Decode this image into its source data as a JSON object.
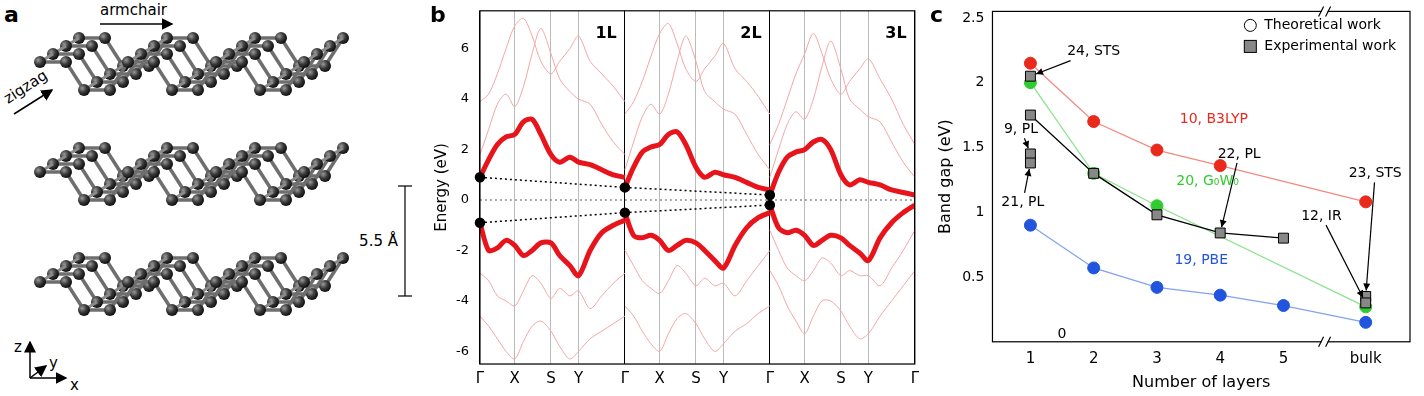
{
  "panel_labels": {
    "a": "a",
    "b": "b",
    "c": "c"
  },
  "structure": {
    "armchair": "armchair",
    "zigzag": "zigzag",
    "spacing": "5.5 Å",
    "axes": {
      "x": "x",
      "y": "y",
      "z": "z"
    }
  },
  "chart_data": [
    {
      "type": "line",
      "y_label": "Energy (eV)",
      "xlim": [
        0,
        3
      ],
      "xticks": [
        {
          "value": 0,
          "label": "Γ"
        },
        {
          "value": 0.24,
          "label": "X"
        },
        {
          "value": 0.49,
          "label": "S"
        },
        {
          "value": 0.68,
          "label": "Y"
        },
        {
          "value": 1,
          "label": "Γ"
        },
        {
          "value": 1.24,
          "label": "X"
        },
        {
          "value": 1.49,
          "label": "S"
        },
        {
          "value": 1.68,
          "label": "Y"
        },
        {
          "value": 2,
          "label": "Γ"
        },
        {
          "value": 2.24,
          "label": "X"
        },
        {
          "value": 2.49,
          "label": "S"
        },
        {
          "value": 2.68,
          "label": "Y"
        },
        {
          "value": 3,
          "label": "Γ"
        }
      ],
      "ylim": [
        -6.5,
        7.5
      ],
      "yticks": [
        -6,
        -4,
        -2,
        0,
        2,
        4,
        6
      ],
      "grid": true,
      "annotations": [
        {
          "text": "1L",
          "x": 0.87,
          "y": 6.6
        },
        {
          "text": "2L",
          "x": 1.87,
          "y": 6.6
        },
        {
          "text": "3L",
          "x": 2.87,
          "y": 6.6
        }
      ],
      "series": [
        {
          "x": [
            0,
            0.06,
            0.12,
            0.18,
            0.24,
            0.3,
            0.36,
            0.42,
            0.49,
            0.55,
            0.62,
            0.68,
            0.76,
            0.84,
            0.92,
            1
          ],
          "values": [
            1.8,
            2.8,
            3.8,
            4.2,
            3.7,
            4.5,
            5.8,
            6.8,
            5.8,
            4.8,
            4.3,
            4.0,
            3.8,
            3.0,
            2.3,
            1.8
          ],
          "color": "#f3a6a6",
          "line_style": "solid"
        },
        {
          "x": [
            0,
            0.06,
            0.12,
            0.18,
            0.24,
            0.3,
            0.36,
            0.42,
            0.49,
            0.55,
            0.62,
            0.68,
            0.76,
            0.84,
            0.92,
            1
          ],
          "values": [
            3.9,
            4.2,
            5.0,
            6.0,
            6.9,
            7.2,
            6.5,
            5.5,
            5.0,
            5.5,
            6.0,
            6.5,
            5.5,
            5.0,
            4.5,
            3.9
          ],
          "color": "#f3a6a6",
          "line_style": "solid"
        },
        {
          "x": [
            0,
            0.06,
            0.12,
            0.18,
            0.24,
            0.3,
            0.36,
            0.42,
            0.49,
            0.55,
            0.62,
            0.68,
            0.76,
            0.84,
            0.92,
            1
          ],
          "values": [
            -2.9,
            -3.2,
            -3.8,
            -4.0,
            -4.2,
            -3.6,
            -3.0,
            -3.3,
            -3.9,
            -3.5,
            -3.8,
            -3.6,
            -4.3,
            -3.8,
            -3.3,
            -2.9
          ],
          "color": "#f3a6a6",
          "line_style": "solid"
        },
        {
          "x": [
            0,
            0.06,
            0.12,
            0.18,
            0.24,
            0.3,
            0.36,
            0.42,
            0.49,
            0.55,
            0.62,
            0.68,
            0.76,
            0.84,
            0.92,
            1
          ],
          "values": [
            -4.6,
            -5.0,
            -5.5,
            -6.0,
            -6.3,
            -5.6,
            -5.0,
            -4.8,
            -5.2,
            -5.8,
            -6.3,
            -6.0,
            -5.5,
            -5.2,
            -4.9,
            -4.6
          ],
          "color": "#f3a6a6",
          "line_style": "solid"
        },
        {
          "x": [
            0,
            0.06,
            0.12,
            0.18,
            0.24,
            0.3,
            0.36,
            0.42,
            0.49,
            0.55,
            0.62,
            0.68,
            0.76,
            0.84,
            0.92,
            1
          ],
          "values": [
            0.9,
            1.6,
            2.2,
            2.5,
            2.6,
            3.1,
            3.2,
            2.6,
            1.8,
            1.5,
            1.7,
            1.5,
            1.4,
            1.2,
            1.0,
            0.9
          ],
          "color": "#e8141c",
          "line_style": "solid"
        },
        {
          "x": [
            0,
            0.06,
            0.12,
            0.18,
            0.24,
            0.3,
            0.36,
            0.42,
            0.49,
            0.55,
            0.62,
            0.68,
            0.76,
            0.84,
            0.92,
            1
          ],
          "values": [
            -0.9,
            -2.0,
            -1.9,
            -1.6,
            -1.8,
            -2.2,
            -2.0,
            -1.7,
            -1.7,
            -2.2,
            -2.6,
            -3.0,
            -2.0,
            -1.3,
            -1.0,
            -0.8
          ],
          "color": "#e8141c",
          "line_style": "solid"
        },
        {
          "x": [
            1,
            1.06,
            1.12,
            1.18,
            1.24,
            1.3,
            1.36,
            1.42,
            1.49,
            1.55,
            1.62,
            1.68,
            1.76,
            1.84,
            1.92,
            2
          ],
          "values": [
            1.2,
            2.3,
            3.3,
            3.8,
            3.4,
            4.2,
            5.5,
            6.5,
            5.5,
            4.3,
            3.9,
            3.6,
            3.4,
            2.6,
            1.8,
            1.2
          ],
          "color": "#f3a6a6",
          "line_style": "solid"
        },
        {
          "x": [
            1,
            1.06,
            1.12,
            1.18,
            1.24,
            1.3,
            1.36,
            1.42,
            1.49,
            1.55,
            1.62,
            1.68,
            1.76,
            1.84,
            1.92,
            2
          ],
          "values": [
            3.4,
            3.9,
            4.7,
            5.7,
            6.6,
            7.0,
            6.2,
            5.2,
            4.7,
            5.2,
            5.7,
            6.2,
            5.2,
            4.7,
            4.1,
            3.4
          ],
          "color": "#f3a6a6",
          "line_style": "solid"
        },
        {
          "x": [
            1,
            1.06,
            1.12,
            1.18,
            1.24,
            1.3,
            1.36,
            1.42,
            1.49,
            1.55,
            1.62,
            1.68,
            1.76,
            1.84,
            1.92,
            2
          ],
          "values": [
            -2.0,
            -2.6,
            -3.2,
            -3.5,
            -3.7,
            -3.2,
            -2.6,
            -2.9,
            -3.4,
            -3.1,
            -3.4,
            -3.3,
            -3.8,
            -3.2,
            -2.6,
            -2.0
          ],
          "color": "#f3a6a6",
          "line_style": "solid"
        },
        {
          "x": [
            1,
            1.06,
            1.12,
            1.18,
            1.24,
            1.3,
            1.36,
            1.42,
            1.49,
            1.55,
            1.62,
            1.68,
            1.76,
            1.84,
            1.92,
            2
          ],
          "values": [
            -4.2,
            -4.6,
            -5.2,
            -5.7,
            -6.0,
            -5.3,
            -4.7,
            -4.5,
            -4.9,
            -5.5,
            -6.0,
            -5.7,
            -5.2,
            -4.9,
            -4.5,
            -4.2
          ],
          "color": "#f3a6a6",
          "line_style": "solid"
        },
        {
          "x": [
            1,
            1.06,
            1.12,
            1.18,
            1.24,
            1.3,
            1.36,
            1.42,
            1.49,
            1.55,
            1.62,
            1.68,
            1.76,
            1.84,
            1.92,
            2
          ],
          "values": [
            0.5,
            1.3,
            1.9,
            2.1,
            2.2,
            2.6,
            2.7,
            2.2,
            1.3,
            0.9,
            1.1,
            1.0,
            0.9,
            0.7,
            0.5,
            0.4
          ],
          "color": "#e8141c",
          "line_style": "solid"
        },
        {
          "x": [
            1,
            1.06,
            1.12,
            1.18,
            1.24,
            1.3,
            1.36,
            1.42,
            1.49,
            1.55,
            1.62,
            1.68,
            1.76,
            1.84,
            1.92,
            2
          ],
          "values": [
            -0.5,
            -1.4,
            -1.5,
            -1.4,
            -1.6,
            -2.0,
            -1.8,
            -1.6,
            -1.7,
            -2.0,
            -2.4,
            -2.7,
            -1.8,
            -1.1,
            -0.7,
            -0.5
          ],
          "color": "#e8141c",
          "line_style": "solid"
        },
        {
          "x": [
            2,
            2.06,
            2.12,
            2.18,
            2.24,
            2.3,
            2.36,
            2.42,
            2.49,
            2.55,
            2.62,
            2.68,
            2.76,
            2.84,
            2.92,
            3
          ],
          "values": [
            0.9,
            2.0,
            3.0,
            3.5,
            3.2,
            4.0,
            5.3,
            6.3,
            5.2,
            4.0,
            3.6,
            3.3,
            3.1,
            2.3,
            1.5,
            0.9
          ],
          "color": "#f3a6a6",
          "line_style": "solid"
        },
        {
          "x": [
            2,
            2.06,
            2.12,
            2.18,
            2.24,
            2.3,
            2.36,
            2.42,
            2.49,
            2.55,
            2.62,
            2.68,
            2.76,
            2.84,
            2.92,
            3
          ],
          "values": [
            2.2,
            3.0,
            4.0,
            5.0,
            5.8,
            6.6,
            5.8,
            4.8,
            4.2,
            4.7,
            5.2,
            5.6,
            4.8,
            4.0,
            3.0,
            2.2
          ],
          "color": "#f3a6a6",
          "line_style": "solid"
        },
        {
          "x": [
            2,
            2.06,
            2.12,
            2.18,
            2.24,
            2.3,
            2.36,
            2.42,
            2.49,
            2.55,
            2.62,
            2.68,
            2.76,
            2.84,
            2.92,
            3
          ],
          "values": [
            -1.2,
            -2.0,
            -2.7,
            -3.0,
            -3.2,
            -2.8,
            -2.3,
            -2.5,
            -3.0,
            -2.8,
            -3.0,
            -3.0,
            -3.4,
            -2.7,
            -2.0,
            -1.2
          ],
          "color": "#f3a6a6",
          "line_style": "solid"
        },
        {
          "x": [
            2,
            2.06,
            2.12,
            2.18,
            2.24,
            2.3,
            2.36,
            2.42,
            2.49,
            2.55,
            2.62,
            2.68,
            2.76,
            2.84,
            2.92,
            3
          ],
          "values": [
            -2.8,
            -3.4,
            -4.2,
            -4.8,
            -5.3,
            -4.6,
            -4.0,
            -4.0,
            -4.4,
            -5.0,
            -5.5,
            -5.3,
            -4.6,
            -4.0,
            -3.4,
            -2.8
          ],
          "color": "#f3a6a6",
          "line_style": "solid"
        },
        {
          "x": [
            2,
            2.06,
            2.12,
            2.18,
            2.24,
            2.3,
            2.36,
            2.42,
            2.49,
            2.55,
            2.62,
            2.68,
            2.76,
            2.84,
            2.92,
            3
          ],
          "values": [
            0.2,
            1.1,
            1.7,
            1.9,
            2.0,
            2.3,
            2.4,
            2.0,
            1.0,
            0.6,
            0.8,
            0.7,
            0.6,
            0.4,
            0.3,
            0.2
          ],
          "color": "#e8141c",
          "line_style": "solid"
        },
        {
          "x": [
            2,
            2.06,
            2.12,
            2.18,
            2.24,
            2.3,
            2.36,
            2.42,
            2.49,
            2.55,
            2.62,
            2.68,
            2.76,
            2.84,
            2.92,
            3
          ],
          "values": [
            -0.2,
            -1.1,
            -1.3,
            -1.2,
            -1.4,
            -1.8,
            -1.6,
            -1.4,
            -1.5,
            -1.8,
            -2.1,
            -2.4,
            -1.5,
            -0.9,
            -0.5,
            -0.2
          ],
          "color": "#e8141c",
          "line_style": "solid"
        },
        {
          "x": [
            0,
            1,
            2
          ],
          "values": [
            0.9,
            0.5,
            0.2
          ],
          "color": "#000000",
          "marker": "circle",
          "line_style": "dotted"
        },
        {
          "x": [
            0,
            1,
            2
          ],
          "values": [
            -0.9,
            -0.5,
            -0.2
          ],
          "color": "#000000",
          "marker": "circle",
          "line_style": "dotted"
        }
      ]
    },
    {
      "type": "line",
      "x_label": "Number of layers",
      "y_label": "Band gap (eV)",
      "xlim": [
        0.4,
        7.0
      ],
      "xticks": [
        1,
        2,
        3,
        4,
        5,
        {
          "value": 6.3,
          "label": "bulk"
        }
      ],
      "ylim": [
        0,
        2.55
      ],
      "yticks": [
        0.5,
        1,
        1.5,
        2,
        2.5
      ],
      "legend": "top right",
      "legend_items": [
        {
          "name": "Theoretical work",
          "marker": "circle",
          "color": "#ffffff"
        },
        {
          "name": "Experimental work",
          "marker": "square",
          "color": "#888888"
        }
      ],
      "series": [
        {
          "x": [
            1,
            2,
            3,
            4,
            6.3
          ],
          "values": [
            2.15,
            1.7,
            1.48,
            1.36,
            1.08
          ],
          "color": "#e8291c",
          "marker": "circle",
          "line_style": "solid"
        },
        {
          "x": [
            1,
            2,
            3,
            6.3
          ],
          "values": [
            2.0,
            1.3,
            1.05,
            0.27
          ],
          "color": "#2fcc2f",
          "marker": "circle",
          "line_style": "solid"
        },
        {
          "x": [
            1,
            2,
            3,
            4,
            5,
            6.3
          ],
          "values": [
            0.9,
            0.57,
            0.42,
            0.36,
            0.28,
            0.15
          ],
          "color": "#2255dd",
          "marker": "circle",
          "line_style": "solid"
        },
        {
          "x": [
            1,
            2,
            3,
            4,
            5
          ],
          "values": [
            1.75,
            1.3,
            0.98,
            0.84,
            0.8
          ],
          "color": "#888888",
          "marker": "square",
          "line_style": "solid"
        },
        {
          "x": [
            1,
            1,
            1,
            6.3,
            6.3
          ],
          "values": [
            2.05,
            1.45,
            1.38,
            0.35,
            0.3
          ],
          "color": "#888888",
          "marker": "square",
          "line_style": "none"
        }
      ],
      "annotations": [
        {
          "text": "10, B3LYP",
          "x": 3.9,
          "y": 1.72,
          "color": "#e8291c"
        },
        {
          "text": "20, G₀W₀",
          "x": 3.8,
          "y": 1.24,
          "color": "#2fcc2f"
        },
        {
          "text": "19, PBE",
          "x": 3.7,
          "y": 0.63,
          "color": "#2255dd"
        },
        {
          "text": "24, STS",
          "x": 2.0,
          "y": 2.24,
          "point": [
            1,
            2.05
          ]
        },
        {
          "text": "9, PL",
          "x": 0.85,
          "y": 1.64,
          "point": [
            1,
            1.45
          ]
        },
        {
          "text": "21, PL",
          "x": 0.88,
          "y": 1.08,
          "point": [
            1,
            1.38
          ]
        },
        {
          "text": "22, PL",
          "x": 4.3,
          "y": 1.45,
          "point": [
            4,
            0.84
          ]
        },
        {
          "text": "23, STS",
          "x": 6.45,
          "y": 1.3,
          "point": [
            6.3,
            0.35
          ]
        },
        {
          "text": "12, IR",
          "x": 5.6,
          "y": 0.97,
          "point": [
            6.3,
            0.3
          ]
        },
        {
          "text": "0",
          "x": 1.5,
          "y": 0.06
        }
      ]
    }
  ]
}
